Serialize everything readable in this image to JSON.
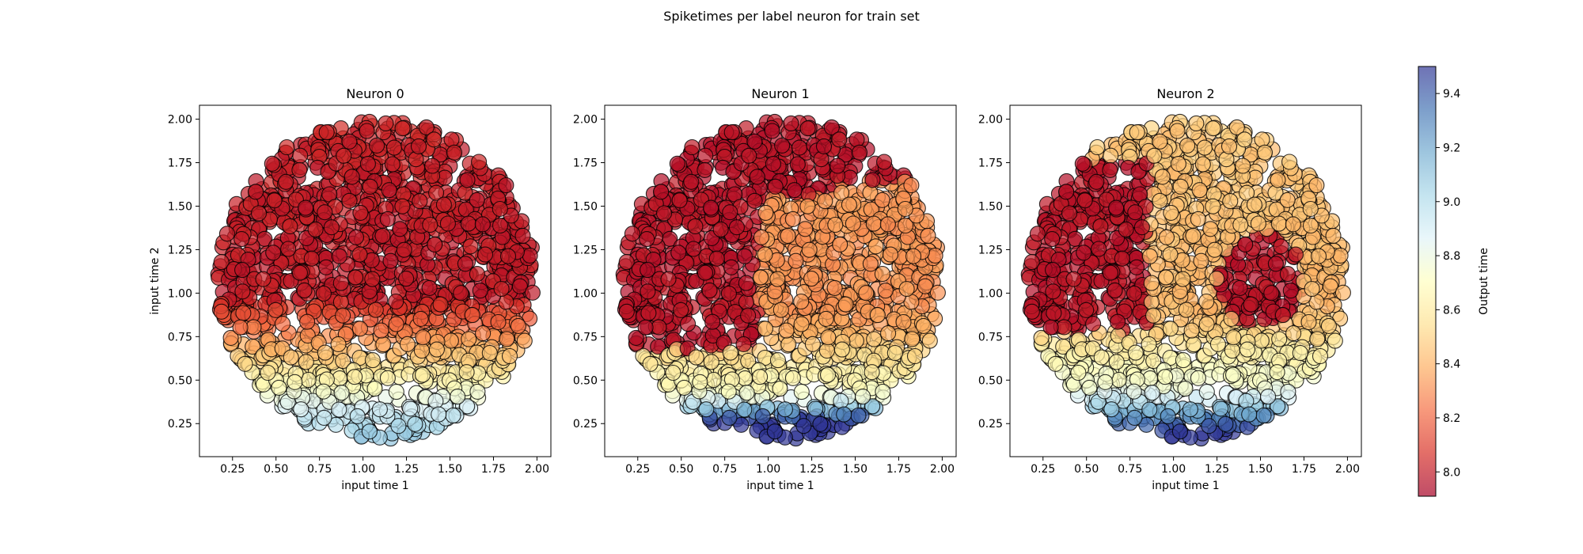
{
  "figure": {
    "suptitle": "Spiketimes per label neuron for train set"
  },
  "chart_data": [
    {
      "type": "scatter",
      "title": "Neuron 0",
      "xlabel": "input time 1",
      "ylabel": "input time 2",
      "xlim": [
        0.06,
        2.08
      ],
      "ylim": [
        0.06,
        2.08
      ],
      "xticks": [
        "0.25",
        "0.50",
        "0.75",
        "1.00",
        "1.25",
        "1.50",
        "1.75",
        "2.00"
      ],
      "yticks": [
        "0.25",
        "0.50",
        "0.75",
        "1.00",
        "1.25",
        "1.50",
        "1.75",
        "2.00"
      ],
      "points": "disk of ~1500 input pairs centred (1.08,1.08), radius ~0.92; output time ~7.9-8.1 for input time 2 > 0.9, rising to ~8.9-9.2 near input time 2 = 0.2",
      "marker_size_px": 0
    },
    {
      "type": "scatter",
      "title": "Neuron 1",
      "xlabel": "input time 1",
      "ylabel": "",
      "xlim": [
        0.06,
        2.08
      ],
      "ylim": [
        0.06,
        2.08
      ],
      "xticks": [
        "0.25",
        "0.50",
        "0.75",
        "1.00",
        "1.25",
        "1.50",
        "1.75",
        "2.00"
      ],
      "yticks": [
        "0.25",
        "0.50",
        "0.75",
        "1.00",
        "1.25",
        "1.50",
        "1.75",
        "2.00"
      ],
      "points": "disk of ~1500 input pairs; output time ~7.9 in the upper-left region, ~8.3-8.6 on the right, rising to ~9.4 near the bottom"
    },
    {
      "type": "scatter",
      "title": "Neuron 2",
      "xlabel": "input time 1",
      "ylabel": "",
      "xlim": [
        0.06,
        2.08
      ],
      "ylim": [
        0.06,
        2.08
      ],
      "xticks": [
        "0.25",
        "0.50",
        "0.75",
        "1.00",
        "1.25",
        "1.50",
        "1.75",
        "2.00"
      ],
      "yticks": [
        "0.25",
        "0.50",
        "0.75",
        "1.00",
        "1.25",
        "1.50",
        "1.75",
        "2.00"
      ],
      "points": "disk of ~1500 input pairs; output time ~7.9 in two clusters (left, and right around (1.5,1.1)), ~8.4-8.6 elsewhere, rising to ~9.3 near the bottom"
    },
    {
      "type": "colorbar",
      "label": "Output time",
      "range": [
        7.91,
        9.5
      ],
      "ticks": [
        "8.0",
        "8.2",
        "8.4",
        "8.6",
        "8.8",
        "9.0",
        "9.2",
        "9.4"
      ],
      "colormap": "RdYlBu",
      "alpha": 0.7
    }
  ],
  "style": {
    "marker_edge": "#000000",
    "axes_edge": "#000000"
  }
}
